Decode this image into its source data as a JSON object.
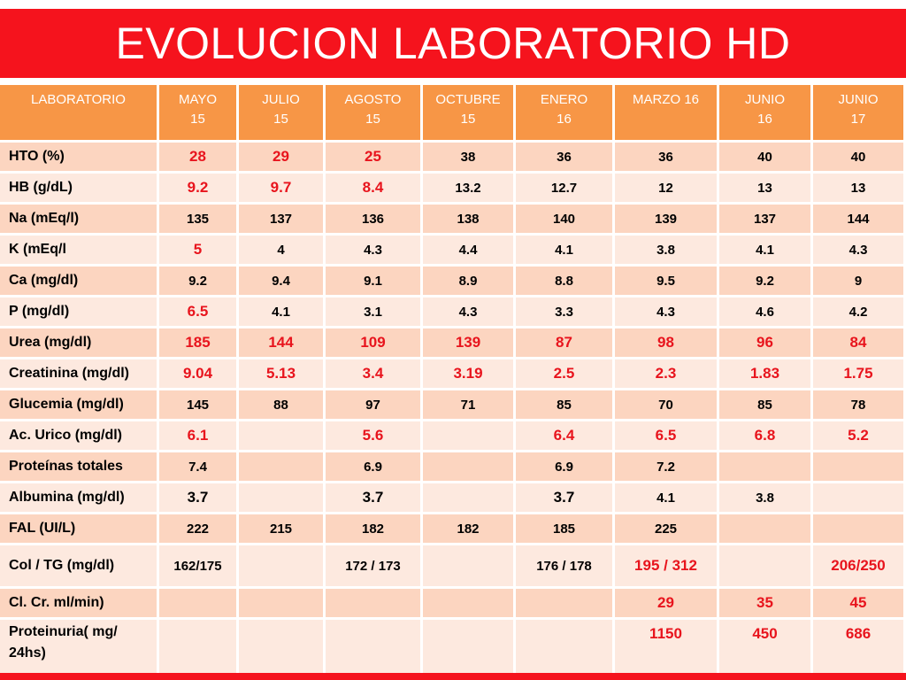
{
  "title": "EVOLUCION LABORATORIO HD",
  "headers": [
    {
      "l1": "LABORATORIO",
      "l2": ""
    },
    {
      "l1": "MAYO",
      "l2": "15"
    },
    {
      "l1": "JULIO",
      "l2": "15"
    },
    {
      "l1": "AGOSTO",
      "l2": "15"
    },
    {
      "l1": "OCTUBRE",
      "l2": "15"
    },
    {
      "l1": "ENERO",
      "l2": "16"
    },
    {
      "l1": "MARZO 16",
      "l2": ""
    },
    {
      "l1": "JUNIO",
      "l2": "16"
    },
    {
      "l1": "JUNIO",
      "l2": "17"
    }
  ],
  "rows": [
    {
      "name": "HTO  (%)",
      "cells": [
        {
          "v": "28",
          "red": true
        },
        {
          "v": "29",
          "red": true
        },
        {
          "v": "25",
          "red": true
        },
        {
          "v": "38"
        },
        {
          "v": "36"
        },
        {
          "v": "36"
        },
        {
          "v": "40"
        },
        {
          "v": "40"
        }
      ]
    },
    {
      "name": "HB     (g/dL)",
      "cells": [
        {
          "v": "9.2",
          "red": true
        },
        {
          "v": "9.7",
          "red": true
        },
        {
          "v": "8.4",
          "red": true
        },
        {
          "v": "13.2"
        },
        {
          "v": "12.7"
        },
        {
          "v": "12"
        },
        {
          "v": "13"
        },
        {
          "v": "13"
        }
      ]
    },
    {
      "name": "Na     (mEq/l)",
      "cells": [
        {
          "v": "135"
        },
        {
          "v": "137"
        },
        {
          "v": "136"
        },
        {
          "v": "138"
        },
        {
          "v": "140"
        },
        {
          "v": "139"
        },
        {
          "v": "137"
        },
        {
          "v": "144"
        }
      ]
    },
    {
      "name": "K        (mEq/l",
      "cells": [
        {
          "v": "5",
          "red": true
        },
        {
          "v": "4"
        },
        {
          "v": "4.3"
        },
        {
          "v": "4.4"
        },
        {
          "v": "4.1"
        },
        {
          "v": "3.8"
        },
        {
          "v": "4.1"
        },
        {
          "v": "4.3"
        }
      ]
    },
    {
      "name": "Ca      (mg/dl)",
      "cells": [
        {
          "v": "9.2"
        },
        {
          "v": "9.4"
        },
        {
          "v": "9.1"
        },
        {
          "v": "8.9"
        },
        {
          "v": "8.8"
        },
        {
          "v": "9.5"
        },
        {
          "v": "9.2"
        },
        {
          "v": "9"
        }
      ]
    },
    {
      "name": "P        (mg/dl)",
      "cells": [
        {
          "v": "6.5",
          "red": true
        },
        {
          "v": "4.1"
        },
        {
          "v": "3.1"
        },
        {
          "v": "4.3"
        },
        {
          "v": "3.3"
        },
        {
          "v": "4.3"
        },
        {
          "v": "4.6"
        },
        {
          "v": "4.2"
        }
      ]
    },
    {
      "name": "Urea (mg/dl)",
      "cells": [
        {
          "v": "185",
          "red": true
        },
        {
          "v": "144",
          "red": true
        },
        {
          "v": "109",
          "red": true
        },
        {
          "v": "139",
          "red": true
        },
        {
          "v": "87",
          "red": true
        },
        {
          "v": "98",
          "red": true
        },
        {
          "v": "96",
          "red": true
        },
        {
          "v": "84",
          "red": true
        }
      ]
    },
    {
      "name": "Creatinina (mg/dl)",
      "cells": [
        {
          "v": "9.04",
          "red": true
        },
        {
          "v": "5.13",
          "red": true
        },
        {
          "v": "3.4",
          "red": true
        },
        {
          "v": "3.19",
          "red": true
        },
        {
          "v": "2.5",
          "red": true
        },
        {
          "v": "2.3",
          "red": true
        },
        {
          "v": "1.83",
          "red": true
        },
        {
          "v": "1.75",
          "red": true
        }
      ]
    },
    {
      "name": "Glucemia (mg/dl)",
      "cells": [
        {
          "v": "145"
        },
        {
          "v": "88"
        },
        {
          "v": "97"
        },
        {
          "v": "71"
        },
        {
          "v": "85"
        },
        {
          "v": "70"
        },
        {
          "v": "85"
        },
        {
          "v": "78"
        }
      ]
    },
    {
      "name": "Ac. Urico (mg/dl)",
      "cells": [
        {
          "v": "6.1",
          "red": true
        },
        {
          "v": ""
        },
        {
          "v": "5.6",
          "red": true
        },
        {
          "v": ""
        },
        {
          "v": "6.4",
          "red": true
        },
        {
          "v": "6.5",
          "red": true
        },
        {
          "v": "6.8",
          "red": true
        },
        {
          "v": "5.2",
          "red": true
        }
      ]
    },
    {
      "name": "Proteínas totales",
      "cells": [
        {
          "v": "7.4"
        },
        {
          "v": ""
        },
        {
          "v": "6.9"
        },
        {
          "v": ""
        },
        {
          "v": "6.9"
        },
        {
          "v": "7.2"
        },
        {
          "v": ""
        },
        {
          "v": ""
        }
      ]
    },
    {
      "name": "Albumina (mg/dl)",
      "cells": [
        {
          "v": "3.7",
          "big": true
        },
        {
          "v": ""
        },
        {
          "v": "3.7",
          "big": true
        },
        {
          "v": ""
        },
        {
          "v": "3.7",
          "big": true
        },
        {
          "v": "4.1"
        },
        {
          "v": "3.8"
        },
        {
          "v": ""
        }
      ]
    },
    {
      "name": "FAL (UI/L)",
      "cells": [
        {
          "v": "222"
        },
        {
          "v": "215"
        },
        {
          "v": "182"
        },
        {
          "v": "182"
        },
        {
          "v": "185"
        },
        {
          "v": "225"
        },
        {
          "v": ""
        },
        {
          "v": ""
        }
      ]
    },
    {
      "name": "Col / TG (mg/dl)",
      "tall": 1,
      "cells": [
        {
          "v": "162/175"
        },
        {
          "v": ""
        },
        {
          "v": "172 / 173"
        },
        {
          "v": ""
        },
        {
          "v": "176 / 178"
        },
        {
          "v": "195 / 312",
          "red": true
        },
        {
          "v": ""
        },
        {
          "v": "206/250",
          "red": true
        }
      ]
    },
    {
      "name": "Cl. Cr. ml/min)",
      "cells": [
        {
          "v": ""
        },
        {
          "v": ""
        },
        {
          "v": ""
        },
        {
          "v": ""
        },
        {
          "v": ""
        },
        {
          "v": "29",
          "red": true
        },
        {
          "v": "35",
          "red": true
        },
        {
          "v": "45",
          "red": true
        }
      ]
    },
    {
      "name": "Proteinuria( mg/ 24hs)",
      "tall": 2,
      "cells": [
        {
          "v": ""
        },
        {
          "v": ""
        },
        {
          "v": ""
        },
        {
          "v": ""
        },
        {
          "v": ""
        },
        {
          "v": "1150",
          "red": true
        },
        {
          "v": "450",
          "red": true
        },
        {
          "v": "686",
          "red": true
        }
      ]
    }
  ],
  "colors": {
    "title_bar": "#f5131d",
    "header": "#f79646",
    "row_odd": "#fcd5c0",
    "row_even": "#fde9df",
    "alert_text": "#e8141d"
  }
}
